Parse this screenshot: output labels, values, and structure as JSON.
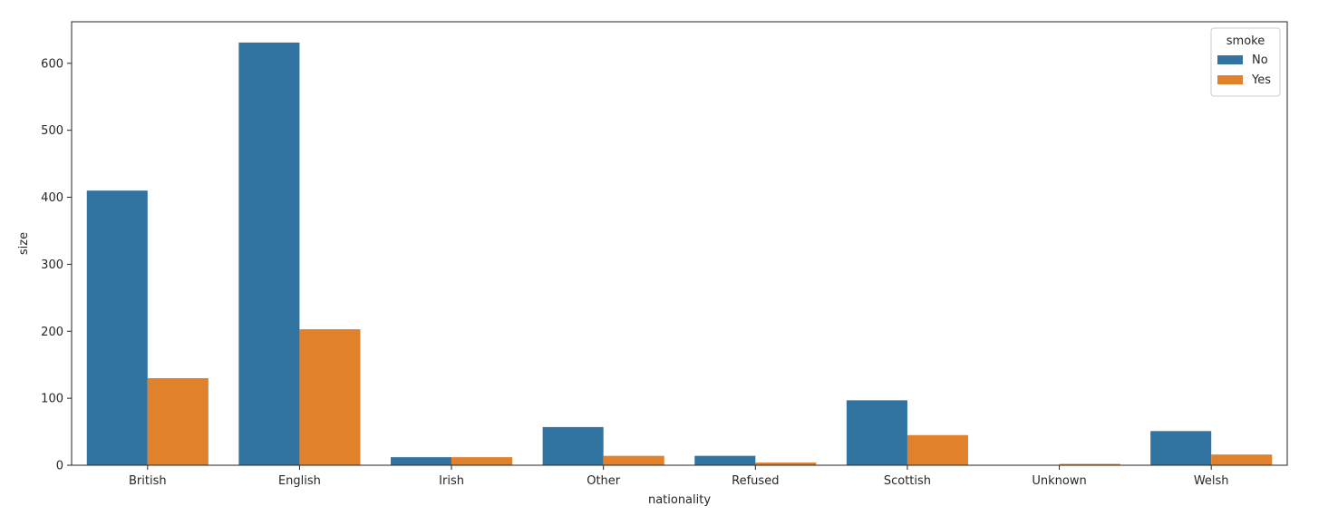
{
  "chart_data": {
    "type": "bar",
    "xlabel": "nationality",
    "ylabel": "size",
    "categories": [
      "British",
      "English",
      "Irish",
      "Other",
      "Refused",
      "Scottish",
      "Unknown",
      "Welsh"
    ],
    "series": [
      {
        "name": "No",
        "color": "#3274a1",
        "values": [
          410,
          631,
          12,
          57,
          14,
          97,
          0,
          51
        ]
      },
      {
        "name": "Yes",
        "color": "#e1812c",
        "values": [
          130,
          203,
          12,
          14,
          4,
          45,
          2,
          16
        ]
      }
    ],
    "ylim": [
      0,
      662
    ],
    "yticks": [
      0,
      100,
      200,
      300,
      400,
      500,
      600
    ],
    "legend": {
      "title": "smoke",
      "placement": "top-right"
    },
    "grid": false
  }
}
